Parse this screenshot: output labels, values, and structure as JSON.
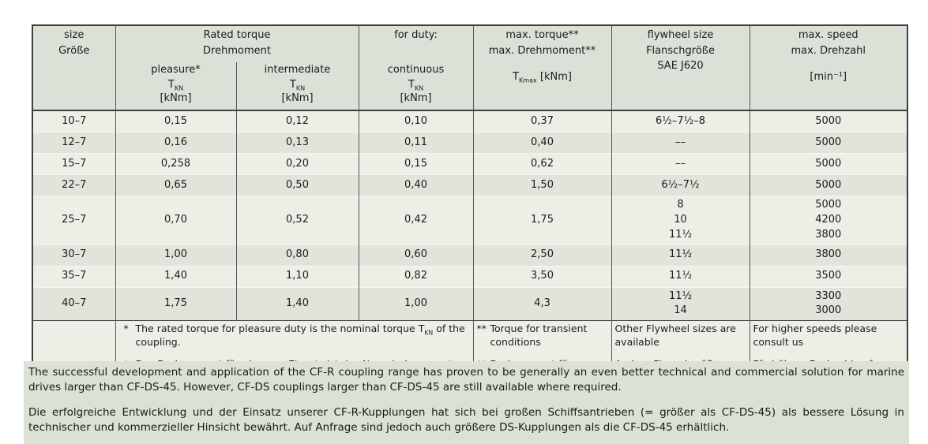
{
  "colors": {
    "row_light": "#edefe7",
    "row_dark": "#e0e4da",
    "header_bg": "#dce1d8",
    "band_bg": "#dae2d4",
    "border_dark": "#3f3f3f",
    "text": "#1c1c1c"
  },
  "table": {
    "header": {
      "size": "size\nGröße",
      "rated": "Rated torque\nDrehmoment",
      "duty": "for duty:",
      "pleasure": {
        "label": "pleasure*",
        "sym": "T~KN~",
        "unit": "[kNm]"
      },
      "intermediate": {
        "label": "intermediate",
        "sym": "T~KN~",
        "unit": "[kNm]"
      },
      "continuous": {
        "label": "continuous",
        "sym": "T~KN~",
        "unit": "[kNm]"
      },
      "max_torque": {
        "line1": "max. torque**",
        "line2": "max. Drehmoment**",
        "sym": "T~Kmax~ [kNm]"
      },
      "flywheel": "flywheel size\nFlanschgröße\nSAE J620",
      "speed": {
        "line1": "max. speed",
        "line2": "max. Drehzahl",
        "unit": "[min⁻¹]"
      }
    },
    "rows": [
      {
        "size": "10–7",
        "pleasure": "0,15",
        "intermediate": "0,12",
        "continuous": "0,10",
        "max_torque": "0,37",
        "flywheel": "6½–7½–8",
        "speed": "5000"
      },
      {
        "size": "12–7",
        "pleasure": "0,16",
        "intermediate": "0,13",
        "continuous": "0,11",
        "max_torque": "0,40",
        "flywheel": "––",
        "speed": "5000"
      },
      {
        "size": "15–7",
        "pleasure": "0,258",
        "intermediate": "0,20",
        "continuous": "0,15",
        "max_torque": "0,62",
        "flywheel": "––",
        "speed": "5000"
      },
      {
        "size": "22–7",
        "pleasure": "0,65",
        "intermediate": "0,50",
        "continuous": "0,40",
        "max_torque": "1,50",
        "flywheel": "6½–7½",
        "speed": "5000"
      },
      {
        "size": "25–7",
        "pleasure": "0,70",
        "intermediate": "0,52",
        "continuous": "0,42",
        "max_torque": "1,75",
        "flywheel": "8\n10\n11½",
        "speed": "5000\n4200\n3800"
      },
      {
        "size": "30–7",
        "pleasure": "1,00",
        "intermediate": "0,80",
        "continuous": "0,60",
        "max_torque": "2,50",
        "flywheel": "11½",
        "speed": "3800"
      },
      {
        "size": "35–7",
        "pleasure": "1,40",
        "intermediate": "1,10",
        "continuous": "0,82",
        "max_torque": "3,50",
        "flywheel": "11½",
        "speed": "3500"
      },
      {
        "size": "40–7",
        "pleasure": "1,75",
        "intermediate": "1,40",
        "continuous": "1,00",
        "max_torque": "4,3",
        "flywheel": "11½\n14",
        "speed": "3300\n3000"
      }
    ],
    "footnotes": {
      "torque": [
        {
          "mark": "*",
          "text": "The rated torque for pleasure duty is the nominal torque T~KN~ of the coupling."
        },
        {
          "mark": "*",
          "text": "Das Drehmoment für pleasure Einsatz ist das Nenndrehmoment T~KN~ der Kupplung."
        }
      ],
      "max_torque": [
        {
          "mark": "**",
          "text": "Torque for transient conditions"
        },
        {
          "mark": "**",
          "text": "Drehmoment für Dauerbetrieb"
        }
      ],
      "flywheel": [
        "Other Flywheel sizes are available",
        "Andere Flanschgrößen sind verfügbar"
      ],
      "speed": [
        "For higher speeds please consult us",
        "Für höhere Drehzahlen fragen Sie bitte an"
      ]
    }
  },
  "paragraphs": [
    "The successful development and application of the CF-R coupling range has proven to be generally an even better technical and commercial solution for marine drives larger than CF-DS-45. However, CF-DS couplings larger than CF-DS-45 are still available where required.",
    "Die erfolgreiche Entwicklung und der Einsatz unserer CF-R-Kupplungen hat sich bei großen Schiffsantrieben (= größer als CF-DS-45) als bessere Lösung in technischer und kommerzieller Hinsicht bewährt. Auf Anfrage sind jedoch auch größere DS-Kupplungen als die CF-DS-45 erhältlich."
  ]
}
